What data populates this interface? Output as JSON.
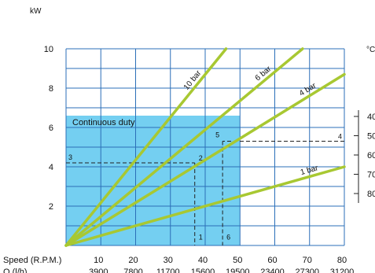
{
  "chart_data": {
    "type": "line",
    "ylabel": "kW",
    "ylim": [
      0,
      10
    ],
    "yticks": [
      "2",
      "4",
      "6",
      "8",
      "10"
    ],
    "xlim": [
      0,
      80
    ],
    "xlabel_speed": "Speed (R.P.M.)",
    "xlabel_flow": "Q (l/h)",
    "speed_ticks": [
      "10",
      "20",
      "30",
      "40",
      "50",
      "60",
      "70",
      "80"
    ],
    "flow_ticks": [
      "3900",
      "7800",
      "11700",
      "15600",
      "19500",
      "23400",
      "27300",
      "31200"
    ],
    "temp_unit": "°C",
    "temp_ticks": [
      "40",
      "50",
      "60",
      "70",
      "80"
    ],
    "continuous_duty": {
      "label": "Continuous duty",
      "x_max": 50,
      "y_max": 6.6
    },
    "series": [
      {
        "name": "10 bar",
        "points": [
          [
            0,
            0
          ],
          [
            46,
            10
          ]
        ]
      },
      {
        "name": "6 bar",
        "points": [
          [
            0,
            0
          ],
          [
            68,
            10
          ]
        ]
      },
      {
        "name": "4 bar",
        "points": [
          [
            0,
            0
          ],
          [
            80,
            8.7
          ]
        ]
      },
      {
        "name": "1 bar",
        "points": [
          [
            0,
            0
          ],
          [
            80,
            4.0
          ]
        ]
      }
    ],
    "reference_points": [
      {
        "label": "1",
        "x": 37,
        "y": 0.15
      },
      {
        "label": "2",
        "x": 37,
        "y": 4.2
      },
      {
        "label": "3",
        "x": 0,
        "y": 4.2
      },
      {
        "label": "4",
        "x": 80,
        "y": 5.3
      },
      {
        "label": "5",
        "x": 45,
        "y": 5.3
      },
      {
        "label": "6",
        "x": 45,
        "y": 0.15
      }
    ],
    "series_color": "#a8c832",
    "duty_color": "#5cc7ee",
    "grid_color": "#2b6fb8"
  }
}
